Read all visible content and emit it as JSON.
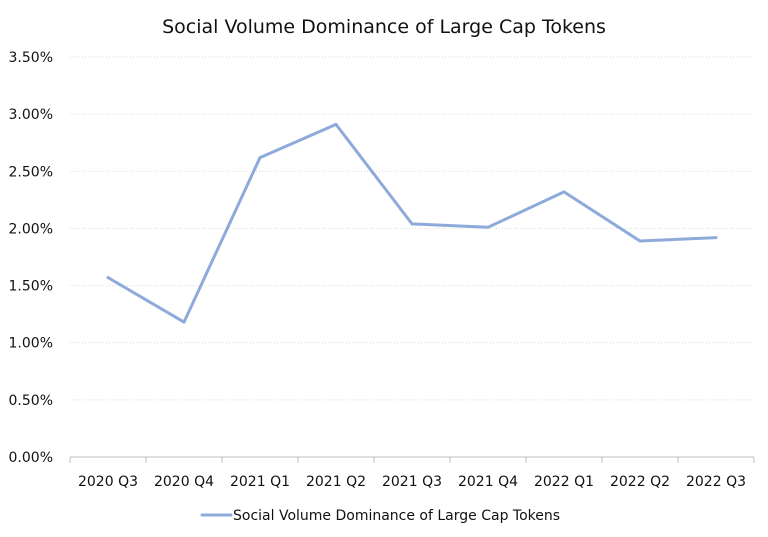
{
  "chart_data": {
    "type": "line",
    "title": "Social Volume Dominance of Large Cap Tokens",
    "xlabel": "",
    "ylabel": "",
    "categories": [
      "2020 Q3",
      "2020 Q4",
      "2021 Q1",
      "2021 Q2",
      "2021 Q3",
      "2021 Q4",
      "2022 Q1",
      "2022 Q2",
      "2022 Q3"
    ],
    "series": [
      {
        "name": "Social Volume Dominance of Large Cap Tokens",
        "values": [
          1.57,
          1.18,
          2.62,
          2.91,
          2.04,
          2.01,
          2.32,
          1.89,
          1.92
        ],
        "color": "#8eaadb"
      }
    ],
    "ylim": [
      0,
      3.5
    ],
    "yticks": [
      0,
      0.5,
      1.0,
      1.5,
      2.0,
      2.5,
      3.0,
      3.5
    ],
    "ytick_labels": [
      "0.00%",
      "0.50%",
      "1.00%",
      "1.50%",
      "2.00%",
      "2.50%",
      "3.00%",
      "3.50%"
    ],
    "grid": true,
    "legend_position": "bottom"
  }
}
